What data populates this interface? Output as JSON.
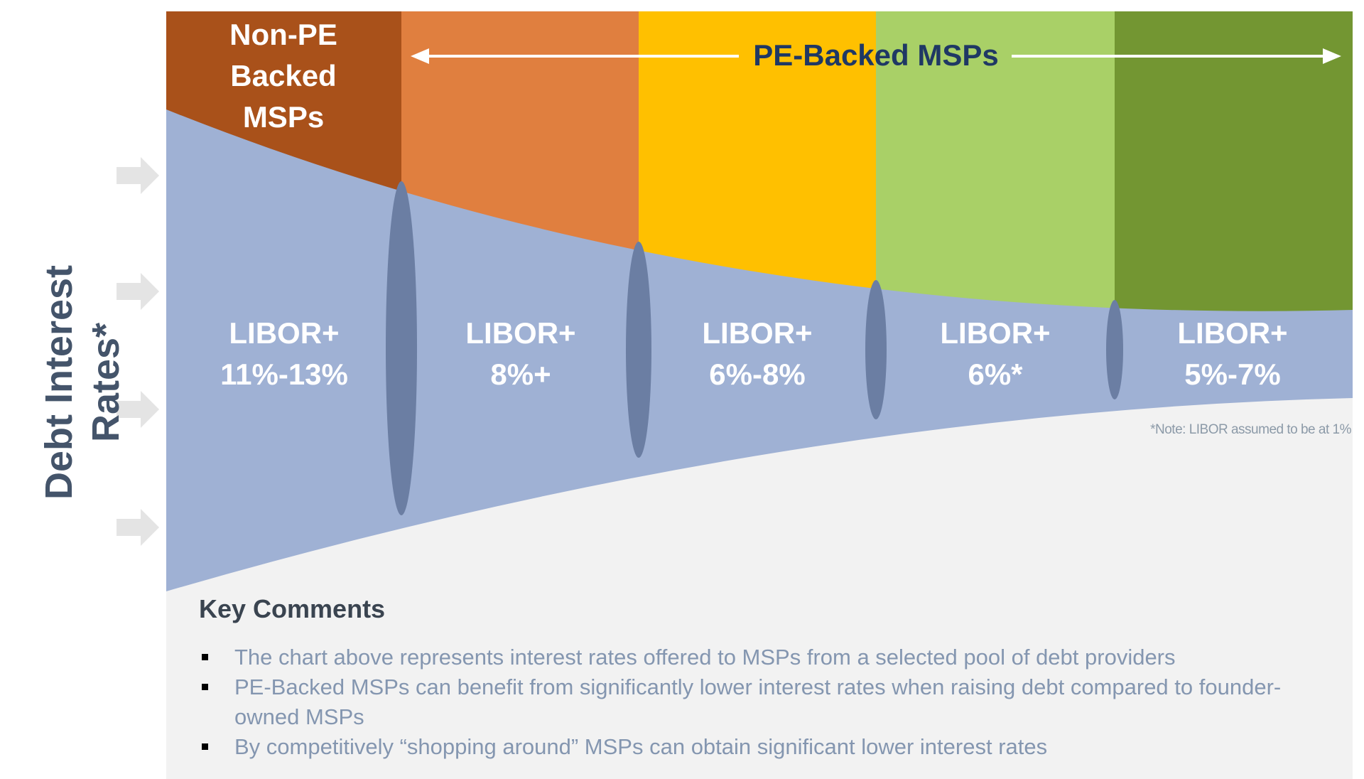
{
  "header": {
    "non_pe_label": [
      "Non-PE",
      "Backed",
      "MSPs"
    ],
    "pe_label": "PE-Backed MSPs"
  },
  "y_axis_title": [
    "Debt Interest",
    "Rates*"
  ],
  "stages": [
    {
      "label_line1": "LIBOR+",
      "label_line2": "11%-13%",
      "color": "#a9511a"
    },
    {
      "label_line1": "LIBOR+",
      "label_line2": "8%+",
      "color": "#e07f3f"
    },
    {
      "label_line1": "LIBOR+",
      "label_line2": "6%-8%",
      "color": "#ffc000"
    },
    {
      "label_line1": "LIBOR+",
      "label_line2": "6%*",
      "color": "#a9d067"
    },
    {
      "label_line1": "LIBOR+",
      "label_line2": "5%-7%",
      "color": "#739632"
    }
  ],
  "note": "*Note: LIBOR assumed to be at 1%",
  "key_comments": {
    "title": "Key Comments",
    "items": [
      "The chart above represents interest rates offered to MSPs from a selected pool of debt providers",
      "PE-Backed MSPs can benefit from significantly lower interest rates when raising debt compared to founder-owned MSPs",
      "By competitively “shopping around” MSPs can obtain significant lower interest rates"
    ]
  },
  "colors": {
    "funnel": "#9fb1d4",
    "ring": "#6b7ea3",
    "arrow": "#e4e4e4",
    "panel": "#f2f2f2",
    "title_text": "#44546a"
  }
}
